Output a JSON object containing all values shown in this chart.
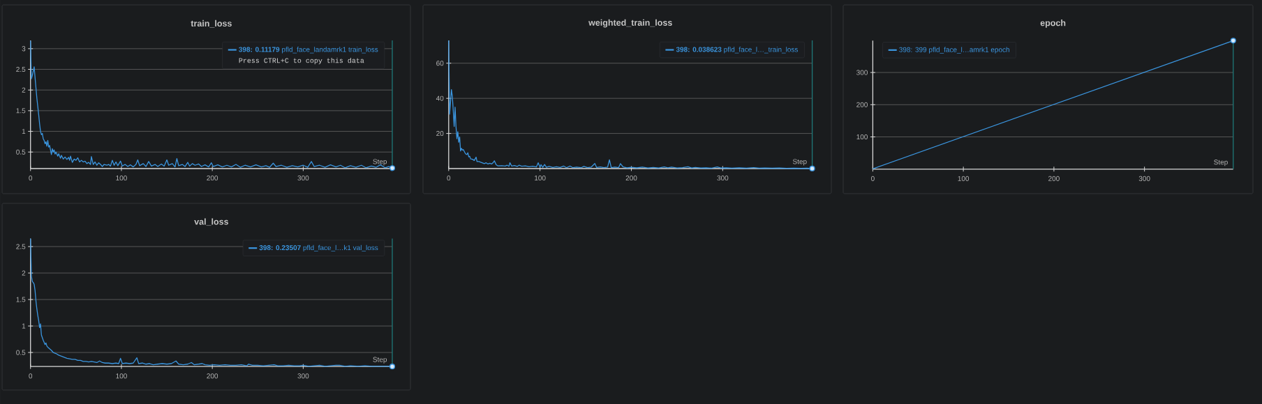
{
  "chart_data": [
    {
      "type": "line",
      "title": "train_loss",
      "xlabel": "Step",
      "xlim": [
        0,
        398
      ],
      "ylim": [
        0.1,
        3.2
      ],
      "xticks": [
        0,
        100,
        200,
        300
      ],
      "yticks": [
        0.5,
        1,
        1.5,
        2,
        2.5,
        3
      ],
      "grid": "y",
      "legend": "top right",
      "annotations": [
        "Press CTRL+C to copy this data"
      ],
      "ref_lines": [
        {
          "axis": "x",
          "value": 398,
          "color": "#1f7878"
        }
      ],
      "series": [
        {
          "name": "**398: 0.11179** pfld_face_landamrk1 train_loss",
          "color": "#3b96e0",
          "x": [
            0,
            1,
            2,
            3,
            4,
            5,
            6,
            7,
            8,
            9,
            10,
            11,
            12,
            13,
            14,
            15,
            16,
            17,
            18,
            19,
            20,
            21,
            22,
            23,
            24,
            25,
            26,
            27,
            28,
            30,
            31,
            33,
            34,
            36,
            38,
            40,
            42,
            43,
            44,
            46,
            48,
            50,
            52,
            54,
            56,
            58,
            60,
            62,
            64,
            66,
            67,
            69,
            71,
            73,
            75,
            77,
            79,
            81,
            84,
            86,
            88,
            90,
            92,
            94,
            96,
            99,
            101,
            104,
            107,
            110,
            113,
            116,
            118,
            120,
            124,
            127,
            130,
            133,
            137,
            140,
            144,
            147,
            150,
            152,
            156,
            159,
            161,
            163,
            167,
            170,
            173,
            175,
            178,
            181,
            185,
            188,
            192,
            196,
            199,
            201,
            206,
            211,
            216,
            221,
            226,
            231,
            236,
            242,
            248,
            254,
            259,
            263,
            267,
            270,
            276,
            282,
            288,
            294,
            300,
            305,
            309,
            312,
            318,
            324,
            330,
            336,
            341,
            346,
            352,
            358,
            364,
            369,
            375,
            380,
            385,
            390,
            394,
            398
          ],
          "values": [
            3.19,
            2.27,
            2.35,
            2.45,
            2.56,
            2.3,
            2.05,
            1.8,
            1.6,
            1.4,
            1.18,
            1.0,
            0.92,
            0.95,
            0.82,
            0.78,
            0.7,
            0.75,
            0.64,
            0.78,
            0.62,
            0.66,
            0.55,
            0.44,
            0.58,
            0.5,
            0.55,
            0.45,
            0.5,
            0.4,
            0.46,
            0.35,
            0.42,
            0.33,
            0.38,
            0.32,
            0.37,
            0.3,
            0.4,
            0.25,
            0.33,
            0.3,
            0.36,
            0.26,
            0.3,
            0.26,
            0.28,
            0.22,
            0.25,
            0.2,
            0.39,
            0.2,
            0.26,
            0.18,
            0.24,
            0.2,
            0.15,
            0.2,
            0.18,
            0.2,
            0.16,
            0.3,
            0.18,
            0.26,
            0.17,
            0.28,
            0.16,
            0.2,
            0.15,
            0.19,
            0.14,
            0.2,
            0.31,
            0.17,
            0.22,
            0.15,
            0.27,
            0.16,
            0.2,
            0.15,
            0.21,
            0.16,
            0.31,
            0.18,
            0.22,
            0.14,
            0.34,
            0.17,
            0.2,
            0.15,
            0.25,
            0.16,
            0.22,
            0.18,
            0.21,
            0.15,
            0.19,
            0.14,
            0.24,
            0.15,
            0.19,
            0.14,
            0.18,
            0.14,
            0.2,
            0.13,
            0.18,
            0.14,
            0.19,
            0.14,
            0.17,
            0.13,
            0.23,
            0.15,
            0.18,
            0.13,
            0.17,
            0.14,
            0.18,
            0.13,
            0.27,
            0.15,
            0.18,
            0.13,
            0.19,
            0.14,
            0.18,
            0.12,
            0.17,
            0.13,
            0.18,
            0.12,
            0.16,
            0.13,
            0.19,
            0.12,
            0.15,
            0.11179
          ]
        },
        {
          "type": "scatter",
          "marker": "circle",
          "color": "#3b96e0",
          "x": [
            398
          ],
          "values": [
            0.11179
          ]
        }
      ]
    },
    {
      "type": "line",
      "title": "weighted_train_loss",
      "xlabel": "Step",
      "xlim": [
        0,
        398
      ],
      "ylim": [
        0,
        73
      ],
      "xticks": [
        0,
        100,
        200,
        300
      ],
      "yticks": [
        20,
        40,
        60
      ],
      "grid": "y",
      "legend": "top right",
      "ref_lines": [
        {
          "axis": "x",
          "value": 398,
          "color": "#1f7878"
        }
      ],
      "series": [
        {
          "name": "**398: 0.038623** pfld_face_l…_train_loss",
          "color": "#3b96e0",
          "x": [
            0,
            1,
            2,
            3,
            4,
            5,
            6,
            7,
            8,
            9,
            10,
            11,
            12,
            13,
            14,
            15,
            16,
            18,
            19,
            20,
            21,
            22,
            23,
            24,
            26,
            28,
            30,
            31,
            33,
            35,
            37,
            39,
            41,
            43,
            45,
            47,
            49,
            50,
            52,
            54,
            58,
            62,
            64,
            66,
            67,
            69,
            72,
            75,
            77,
            80,
            84,
            88,
            92,
            96,
            98,
            100,
            101,
            103,
            105,
            107,
            110,
            114,
            118,
            122,
            126,
            129,
            133,
            136,
            140,
            145,
            148,
            152,
            156,
            160,
            162,
            166,
            170,
            174,
            176,
            178,
            182,
            186,
            188,
            191,
            195,
            200,
            206,
            212,
            218,
            224,
            230,
            236,
            240,
            244,
            250,
            256,
            262,
            266,
            270,
            276,
            282,
            288,
            294,
            298,
            304,
            310,
            318,
            326,
            334,
            340,
            346,
            354,
            362,
            370,
            378,
            386,
            392,
            398
          ],
          "values": [
            73,
            31,
            38,
            45,
            41,
            33,
            24,
            35,
            24,
            17,
            21,
            15,
            18,
            10,
            11.5,
            10.5,
            10.8,
            8.8,
            8.2,
            8,
            9,
            6.7,
            7,
            5.5,
            5.3,
            4.6,
            6.5,
            4,
            4,
            3.6,
            3.2,
            2.8,
            3.3,
            2.6,
            3,
            2.6,
            3.6,
            4.4,
            2.2,
            1.5,
            1.6,
            1.4,
            1.9,
            1.3,
            3.3,
            1.4,
            1.7,
            1.2,
            1.9,
            1.3,
            1.5,
            1.0,
            1.3,
            0.9,
            3.3,
            0.8,
            2.2,
            0.7,
            2.3,
            0.7,
            1.2,
            0.6,
            1.0,
            0.6,
            1.4,
            0.5,
            1.4,
            0.5,
            0.8,
            0.5,
            1.2,
            0.5,
            0.8,
            2.9,
            0.6,
            0.9,
            0.5,
            0.8,
            5.0,
            0.5,
            0.8,
            0.5,
            2.8,
            0.9,
            0.4,
            0.7,
            0.4,
            0.8,
            0.3,
            0.6,
            0.3,
            0.9,
            0.4,
            0.8,
            0.3,
            0.5,
            1.0,
            0.3,
            0.6,
            0.3,
            0.4,
            0.2,
            0.9,
            0.3,
            0.4,
            0.2,
            0.4,
            0.2,
            0.5,
            0.2,
            0.3,
            0.2,
            0.3,
            0.1,
            0.2,
            0.1,
            0.2,
            0.038623
          ]
        },
        {
          "type": "scatter",
          "marker": "circle",
          "color": "#3b96e0",
          "x": [
            398
          ],
          "values": [
            0.038623
          ]
        }
      ]
    },
    {
      "type": "line",
      "title": "epoch",
      "xlabel": "Step",
      "xlim": [
        0,
        398
      ],
      "ylim": [
        0,
        399
      ],
      "xticks": [
        0,
        100,
        200,
        300
      ],
      "yticks": [
        100,
        200,
        300
      ],
      "grid": "y",
      "legend": "top left",
      "ref_lines": [
        {
          "axis": "x",
          "value": 398,
          "color": "#1f7878"
        }
      ],
      "series": [
        {
          "name": "398: 399 pfld_face_l…amrk1 epoch",
          "color": "#3b96e0",
          "x": [
            0,
            398
          ],
          "values": [
            1,
            399
          ]
        },
        {
          "type": "scatter",
          "marker": "circle",
          "color": "#3b96e0",
          "x": [
            398
          ],
          "values": [
            399
          ]
        }
      ]
    },
    {
      "type": "line",
      "title": "val_loss",
      "xlabel": "Step",
      "xlim": [
        0,
        398
      ],
      "ylim": [
        0.235,
        2.65
      ],
      "xticks": [
        0,
        100,
        200,
        300
      ],
      "yticks": [
        0.5,
        1,
        1.5,
        2,
        2.5
      ],
      "grid": "y",
      "legend": "top right",
      "ref_lines": [
        {
          "axis": "x",
          "value": 398,
          "color": "#1f7878"
        }
      ],
      "series": [
        {
          "name": "**398: 0.23507** pfld_face_l…k1 val_loss",
          "color": "#3b96e0",
          "x": [
            0,
            1,
            2,
            3,
            4,
            5,
            6,
            7,
            8,
            9,
            10,
            11,
            12,
            13,
            14,
            15,
            16,
            17,
            18,
            19,
            21,
            23,
            25,
            28,
            31,
            34,
            37,
            40,
            43,
            46,
            49,
            52,
            55,
            58,
            61,
            64,
            67,
            70,
            73,
            76,
            79,
            82,
            86,
            90,
            94,
            97,
            99,
            101,
            105,
            109,
            113,
            117,
            119,
            123,
            127,
            131,
            135,
            140,
            145,
            150,
            155,
            160,
            163,
            168,
            173,
            177,
            180,
            185,
            189,
            192,
            197,
            202,
            208,
            214,
            220,
            226,
            232,
            238,
            240,
            244,
            250,
            256,
            262,
            268,
            272,
            278,
            284,
            290,
            296,
            300,
            306,
            312,
            318,
            324,
            330,
            336,
            340,
            346,
            352,
            360,
            368,
            376,
            384,
            392,
            398
          ],
          "values": [
            2.65,
            1.94,
            1.84,
            1.82,
            1.79,
            1.67,
            1.47,
            1.32,
            1.2,
            1.1,
            0.97,
            1.04,
            0.83,
            0.78,
            0.73,
            0.69,
            0.65,
            0.68,
            0.62,
            0.6,
            0.57,
            0.54,
            0.5,
            0.48,
            0.45,
            0.43,
            0.41,
            0.39,
            0.38,
            0.37,
            0.37,
            0.35,
            0.35,
            0.33,
            0.33,
            0.32,
            0.33,
            0.32,
            0.31,
            0.34,
            0.31,
            0.3,
            0.3,
            0.29,
            0.3,
            0.29,
            0.39,
            0.29,
            0.3,
            0.29,
            0.3,
            0.4,
            0.29,
            0.3,
            0.28,
            0.29,
            0.27,
            0.28,
            0.29,
            0.28,
            0.29,
            0.34,
            0.28,
            0.27,
            0.28,
            0.31,
            0.27,
            0.28,
            0.29,
            0.27,
            0.26,
            0.27,
            0.26,
            0.27,
            0.26,
            0.26,
            0.27,
            0.25,
            0.28,
            0.26,
            0.26,
            0.25,
            0.26,
            0.27,
            0.25,
            0.25,
            0.26,
            0.25,
            0.25,
            0.26,
            0.24,
            0.25,
            0.26,
            0.24,
            0.25,
            0.26,
            0.26,
            0.24,
            0.25,
            0.24,
            0.25,
            0.24,
            0.24,
            0.24,
            0.23507
          ]
        },
        {
          "type": "scatter",
          "marker": "circle",
          "color": "#3b96e0",
          "x": [
            398
          ],
          "values": [
            0.23507
          ]
        }
      ]
    }
  ]
}
